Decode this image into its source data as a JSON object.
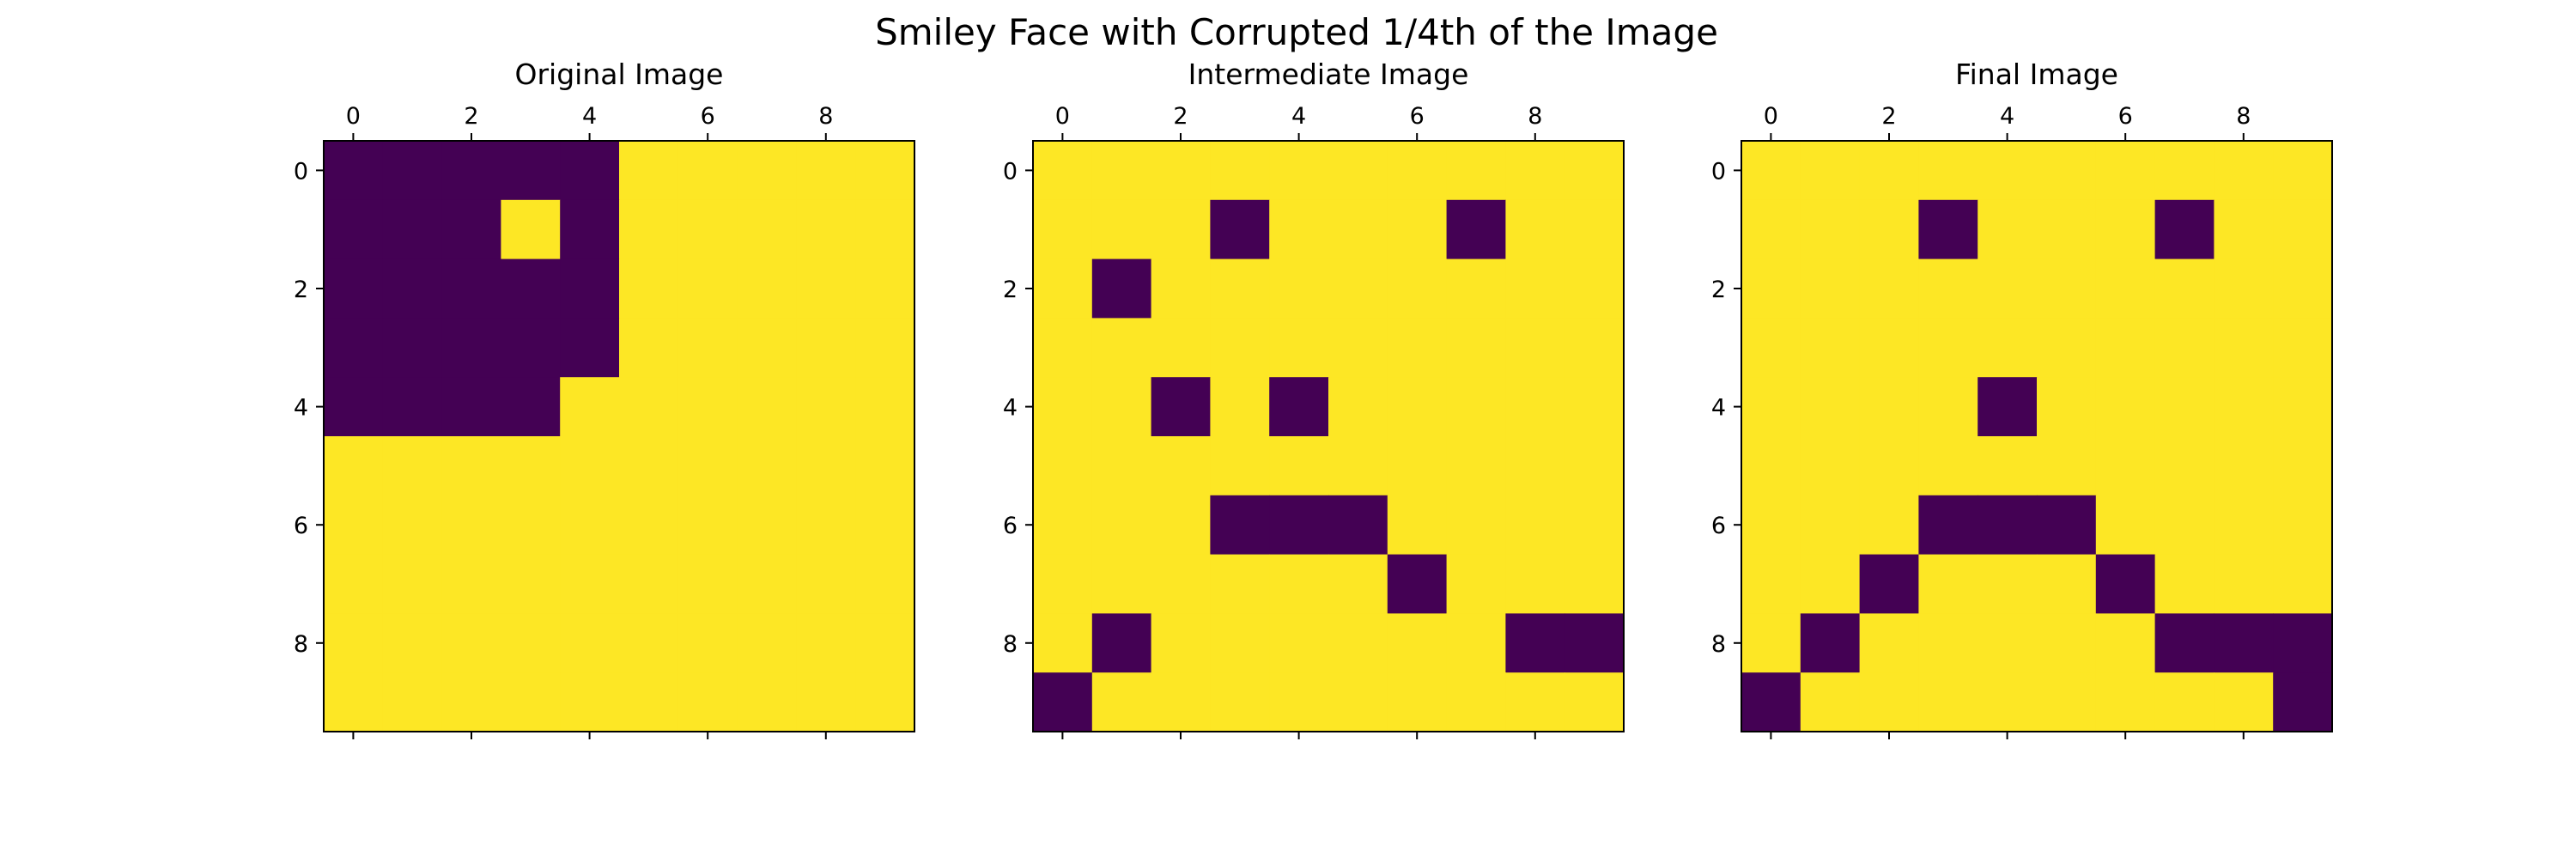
{
  "figure": {
    "title": "Smiley Face with Corrupted 1/4th of the Image"
  },
  "colors": {
    "low": "#440154",
    "high": "#fde725",
    "axis": "#000000",
    "background": "#ffffff"
  },
  "chart_data": [
    {
      "type": "heatmap",
      "title": "Original Image",
      "xticks": [
        0,
        2,
        4,
        6,
        8
      ],
      "yticks": [
        0,
        2,
        4,
        6,
        8
      ],
      "xlim": [
        -0.5,
        9.5
      ],
      "ylim": [
        9.5,
        -0.5
      ],
      "x_axis_position": "top",
      "colormap": "viridis",
      "values": [
        [
          0,
          0,
          0,
          0,
          0,
          1,
          1,
          1,
          1,
          1
        ],
        [
          0,
          0,
          0,
          1,
          0,
          1,
          1,
          1,
          1,
          1
        ],
        [
          0,
          0,
          0,
          0,
          0,
          1,
          1,
          1,
          1,
          1
        ],
        [
          0,
          0,
          0,
          0,
          0,
          1,
          1,
          1,
          1,
          1
        ],
        [
          0,
          0,
          0,
          0,
          1,
          1,
          1,
          1,
          1,
          1
        ],
        [
          1,
          1,
          1,
          1,
          1,
          1,
          1,
          1,
          1,
          1
        ],
        [
          1,
          1,
          1,
          1,
          1,
          1,
          1,
          1,
          1,
          1
        ],
        [
          1,
          1,
          1,
          1,
          1,
          1,
          1,
          1,
          1,
          1
        ],
        [
          1,
          1,
          1,
          1,
          1,
          1,
          1,
          1,
          1,
          1
        ],
        [
          1,
          1,
          1,
          1,
          1,
          1,
          1,
          1,
          1,
          1
        ]
      ]
    },
    {
      "type": "heatmap",
      "title": "Intermediate Image",
      "xticks": [
        0,
        2,
        4,
        6,
        8
      ],
      "yticks": [
        0,
        2,
        4,
        6,
        8
      ],
      "xlim": [
        -0.5,
        9.5
      ],
      "ylim": [
        9.5,
        -0.5
      ],
      "x_axis_position": "top",
      "colormap": "viridis",
      "values": [
        [
          1,
          1,
          1,
          1,
          1,
          1,
          1,
          1,
          1,
          1
        ],
        [
          1,
          1,
          1,
          0,
          1,
          1,
          1,
          0,
          1,
          1
        ],
        [
          1,
          0,
          1,
          1,
          1,
          1,
          1,
          1,
          1,
          1
        ],
        [
          1,
          1,
          1,
          1,
          1,
          1,
          1,
          1,
          1,
          1
        ],
        [
          1,
          1,
          0,
          1,
          0,
          1,
          1,
          1,
          1,
          1
        ],
        [
          1,
          1,
          1,
          1,
          1,
          1,
          1,
          1,
          1,
          1
        ],
        [
          1,
          1,
          1,
          0,
          0,
          0,
          1,
          1,
          1,
          1
        ],
        [
          1,
          1,
          1,
          1,
          1,
          1,
          0,
          1,
          1,
          1
        ],
        [
          1,
          0,
          1,
          1,
          1,
          1,
          1,
          1,
          0,
          0
        ],
        [
          0,
          1,
          1,
          1,
          1,
          1,
          1,
          1,
          1,
          1
        ]
      ]
    },
    {
      "type": "heatmap",
      "title": "Final Image",
      "xticks": [
        0,
        2,
        4,
        6,
        8
      ],
      "yticks": [
        0,
        2,
        4,
        6,
        8
      ],
      "xlim": [
        -0.5,
        9.5
      ],
      "ylim": [
        9.5,
        -0.5
      ],
      "x_axis_position": "top",
      "colormap": "viridis",
      "values": [
        [
          1,
          1,
          1,
          1,
          1,
          1,
          1,
          1,
          1,
          1
        ],
        [
          1,
          1,
          1,
          0,
          1,
          1,
          1,
          0,
          1,
          1
        ],
        [
          1,
          1,
          1,
          1,
          1,
          1,
          1,
          1,
          1,
          1
        ],
        [
          1,
          1,
          1,
          1,
          1,
          1,
          1,
          1,
          1,
          1
        ],
        [
          1,
          1,
          1,
          1,
          0,
          1,
          1,
          1,
          1,
          1
        ],
        [
          1,
          1,
          1,
          1,
          1,
          1,
          1,
          1,
          1,
          1
        ],
        [
          1,
          1,
          1,
          0,
          0,
          0,
          1,
          1,
          1,
          1
        ],
        [
          1,
          1,
          0,
          1,
          1,
          1,
          0,
          1,
          1,
          1
        ],
        [
          1,
          0,
          1,
          1,
          1,
          1,
          1,
          0,
          0,
          0
        ],
        [
          0,
          1,
          1,
          1,
          1,
          1,
          1,
          1,
          1,
          0
        ]
      ]
    }
  ]
}
